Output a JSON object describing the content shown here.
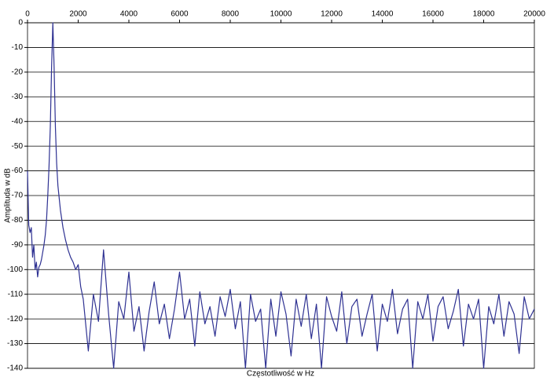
{
  "chart_data": {
    "type": "line",
    "x_label": "Częstotliwość w Hz",
    "y_label": "Amplituda w dB",
    "xlim": [
      0,
      20000
    ],
    "xticks": [
      0,
      2000,
      4000,
      6000,
      8000,
      10000,
      12000,
      14000,
      16000,
      18000,
      20000
    ],
    "ylim": [
      -140,
      0
    ],
    "yticks": [
      0,
      -10,
      -20,
      -30,
      -40,
      -50,
      -60,
      -70,
      -80,
      -90,
      -100,
      -110,
      -120,
      -130,
      -140
    ],
    "grid": true,
    "x_axis_position": "top",
    "series": [
      {
        "color": "#2e3192",
        "x": [
          0,
          50,
          100,
          150,
          200,
          250,
          300,
          350,
          400,
          450,
          500,
          550,
          600,
          650,
          700,
          750,
          800,
          850,
          900,
          950,
          1000,
          1050,
          1100,
          1150,
          1200,
          1300,
          1400,
          1500,
          1600,
          1700,
          1800,
          1900,
          2000,
          2100,
          2200,
          2400,
          2600,
          2800,
          3000,
          3200,
          3400,
          3600,
          3800,
          4000,
          4200,
          4400,
          4600,
          4800,
          5000,
          5200,
          5400,
          5600,
          5800,
          6000,
          6200,
          6400,
          6600,
          6800,
          7000,
          7200,
          7400,
          7600,
          7800,
          8000,
          8200,
          8400,
          8600,
          8800,
          9000,
          9200,
          9400,
          9600,
          9800,
          10000,
          10200,
          10400,
          10600,
          10800,
          11000,
          11200,
          11400,
          11600,
          11800,
          12000,
          12200,
          12400,
          12600,
          12800,
          13000,
          13200,
          13400,
          13600,
          13800,
          14000,
          14200,
          14400,
          14600,
          14800,
          15000,
          15200,
          15400,
          15600,
          15800,
          16000,
          16200,
          16400,
          16600,
          16800,
          17000,
          17200,
          17400,
          17600,
          17800,
          18000,
          18200,
          18400,
          18600,
          18800,
          19000,
          19200,
          19400,
          19600,
          19800,
          20000
        ],
        "values": [
          -60,
          -82,
          -85,
          -83,
          -95,
          -90,
          -100,
          -97,
          -103,
          -99,
          -98,
          -96,
          -93,
          -90,
          -86,
          -80,
          -70,
          -58,
          -42,
          -18,
          0,
          -18,
          -42,
          -57,
          -66,
          -76,
          -83,
          -88,
          -92,
          -95,
          -97,
          -100,
          -98,
          -107,
          -112,
          -133,
          -110,
          -121,
          -92,
          -118,
          -140,
          -113,
          -120,
          -101,
          -125,
          -115,
          -133,
          -117,
          -105,
          -122,
          -114,
          -128,
          -116,
          -101,
          -120,
          -112,
          -131,
          -109,
          -122,
          -115,
          -127,
          -111,
          -119,
          -108,
          -124,
          -113,
          -140,
          -110,
          -121,
          -116,
          -140,
          -112,
          -127,
          -109,
          -118,
          -135,
          -112,
          -123,
          -110,
          -128,
          -114,
          -140,
          -111,
          -119,
          -125,
          -109,
          -130,
          -115,
          -112,
          -127,
          -118,
          -110,
          -133,
          -114,
          -121,
          -108,
          -126,
          -116,
          -112,
          -140,
          -113,
          -120,
          -110,
          -129,
          -115,
          -111,
          -124,
          -117,
          -108,
          -131,
          -114,
          -120,
          -112,
          -140,
          -115,
          -122,
          -110,
          -127,
          -113,
          -118,
          -134,
          -111,
          -120,
          -116
        ]
      }
    ]
  }
}
